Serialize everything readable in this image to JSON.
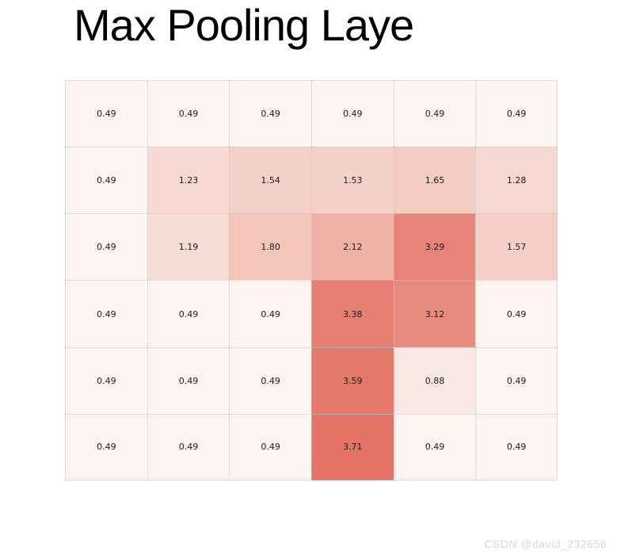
{
  "page": {
    "background": "#ffffff"
  },
  "watermark": {
    "text": "CSDN @david_232656",
    "color": "#d8d8d8"
  },
  "style": {
    "title_color": "#000000",
    "cell_text_color": "#1c1c1c",
    "grid_border_color": "#c6c6c6",
    "grid_border_style": "dotted"
  },
  "chart_data": {
    "type": "heatmap",
    "title": "Max Pooling Laye",
    "rows": 6,
    "cols": 6,
    "values": [
      [
        0.49,
        0.49,
        0.49,
        0.49,
        0.49,
        0.49
      ],
      [
        0.49,
        1.23,
        1.54,
        1.53,
        1.65,
        1.28
      ],
      [
        0.49,
        1.19,
        1.8,
        2.12,
        3.29,
        1.57
      ],
      [
        0.49,
        0.49,
        0.49,
        3.38,
        3.12,
        0.49
      ],
      [
        0.49,
        0.49,
        0.49,
        3.59,
        0.88,
        0.49
      ],
      [
        0.49,
        0.49,
        0.49,
        3.71,
        0.49,
        0.49
      ]
    ],
    "value_format": "fixed-2-decimals",
    "cell_colors": [
      [
        "#fdf4f2",
        "#fdf4f2",
        "#fdf4f2",
        "#fdf4f2",
        "#fdf4f2",
        "#fdf4f2"
      ],
      [
        "#fdf4f2",
        "#f8dad5",
        "#f5d0c9",
        "#f5d1ca",
        "#f4ccc4",
        "#f7d7d1"
      ],
      [
        "#fdf4f2",
        "#f8dcd7",
        "#f3c5bb",
        "#f0b2a7",
        "#e78378",
        "#f5cfc7"
      ],
      [
        "#fdf4f2",
        "#fdf4f2",
        "#fdf4f2",
        "#e67f73",
        "#e98a7e",
        "#fdf4f2"
      ],
      [
        "#fdf4f2",
        "#fdf4f2",
        "#fdf4f2",
        "#e4786b",
        "#fae8e4",
        "#fdf4f2"
      ],
      [
        "#fdf4f2",
        "#fdf4f2",
        "#fdf4f2",
        "#e37467",
        "#fdf4f2",
        "#fdf4f2"
      ]
    ],
    "value_range_shown": [
      0.49,
      3.71
    ],
    "colormap": "light-red sequential (Reds-like)",
    "xlabel": "",
    "ylabel": "",
    "axes": "none",
    "legend": "none",
    "gridlines": "dotted light-gray cell borders"
  }
}
